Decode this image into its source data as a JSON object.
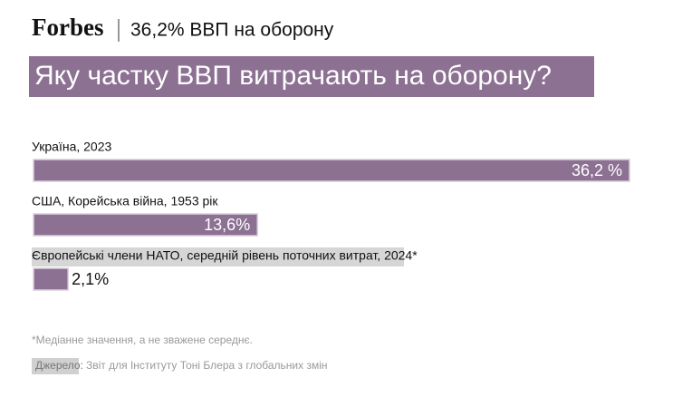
{
  "brand": "Forbes",
  "subtitle": "36,2% ВВП на оборону",
  "chart_data": {
    "type": "hbar",
    "title": "Яку частку ВВП витрачають на оборону?",
    "categories": [
      "Україна, 2023",
      "США, Корейська війна, 1953 рік",
      "Європейські члени НАТО, середній рівень поточних витрат, 2024*"
    ],
    "values": [
      36.2,
      13.6,
      2.1
    ],
    "value_labels": [
      "36,2 %",
      "13,6%",
      "2,1%"
    ],
    "color": "#8c7193"
  },
  "footnote": "*Медіанне значення, а не зважене середнє.",
  "source_label": "Джерело:",
  "source": "Звіт для Інституту Тоні Блера з глобальних змін"
}
